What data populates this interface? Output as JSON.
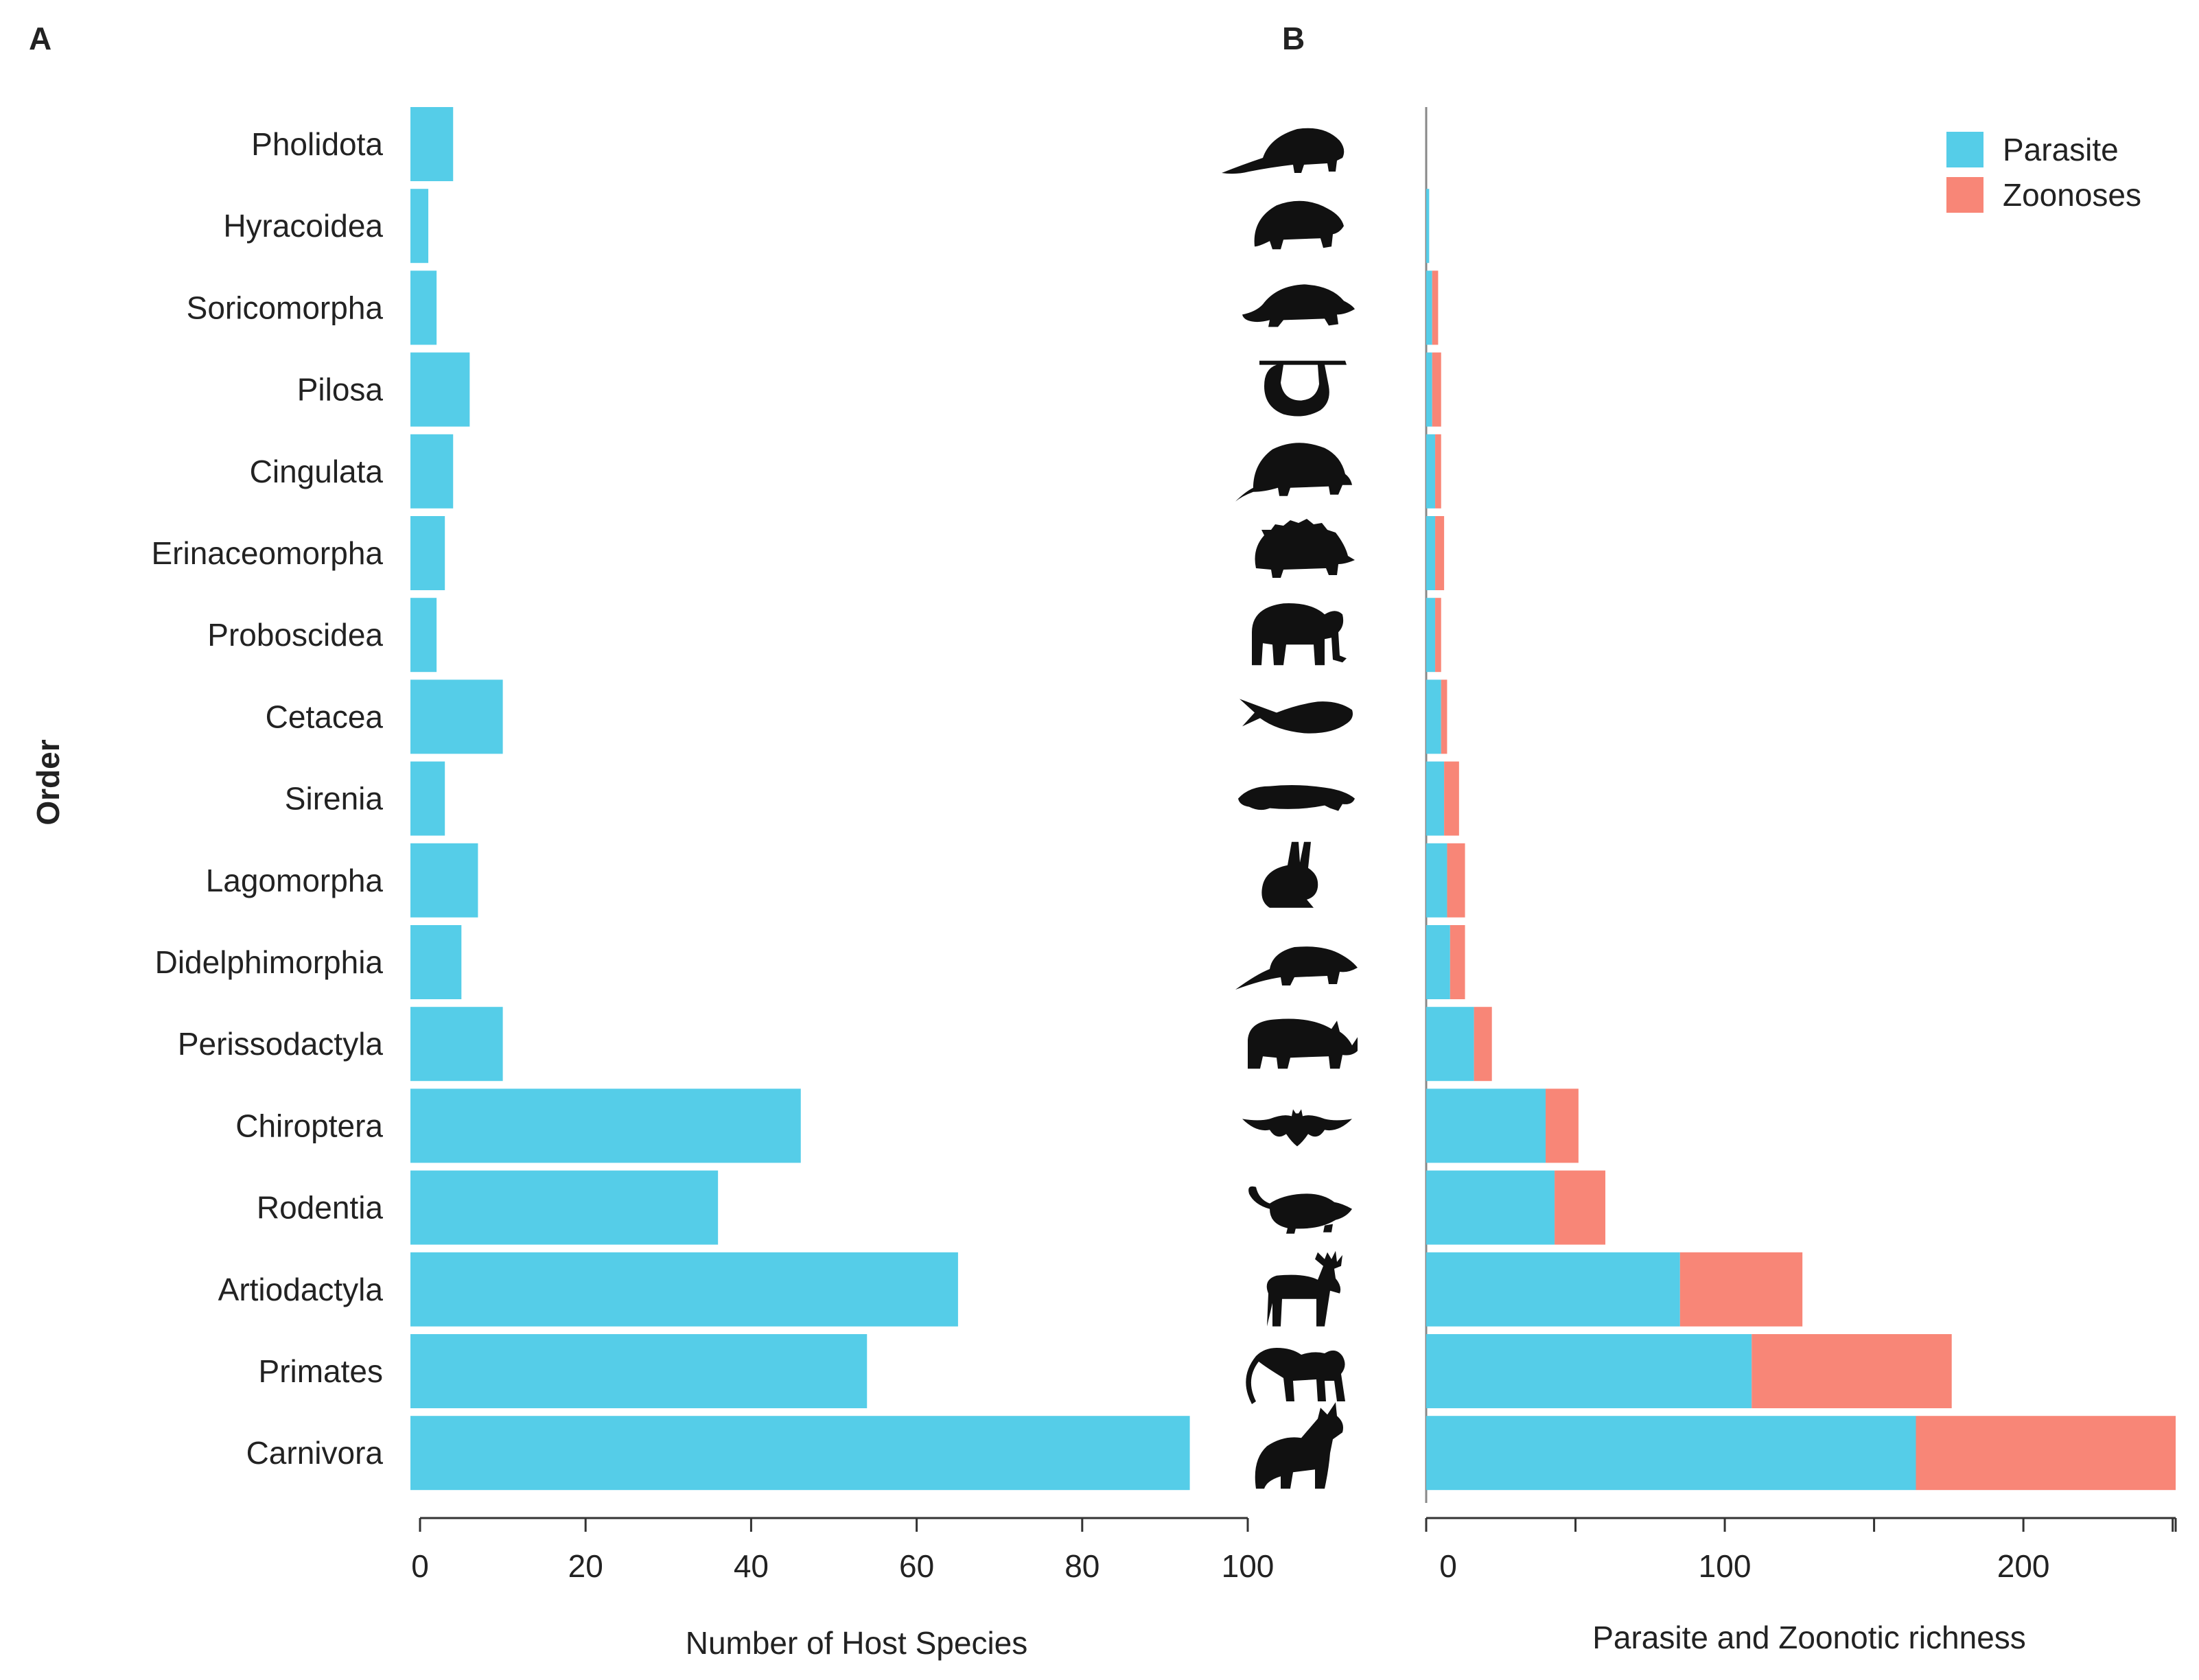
{
  "figure": {
    "panel_a_letter": "A",
    "panel_b_letter": "B",
    "y_axis_title": "Order"
  },
  "chart_data": [
    {
      "type": "bar",
      "orientation": "horizontal",
      "panel": "A",
      "categories": [
        "Pholidota",
        "Hyracoidea",
        "Soricomorpha",
        "Pilosa",
        "Cingulata",
        "Erinaceomorpha",
        "Proboscidea",
        "Cetacea",
        "Sirenia",
        "Lagomorpha",
        "Didelphimorphia",
        "Perissodactyla",
        "Chiroptera",
        "Rodentia",
        "Artiodactyla",
        "Primates",
        "Carnivora"
      ],
      "values": [
        4,
        1,
        2,
        6,
        4,
        3,
        2,
        10,
        3,
        7,
        5,
        10,
        46,
        36,
        65,
        54,
        93
      ],
      "xlabel": "Number of Host Species",
      "ylabel": "Order",
      "xlim": [
        0,
        100
      ],
      "xticks": [
        0,
        20,
        40,
        60,
        80,
        100
      ],
      "color": "#55CDE8"
    },
    {
      "type": "bar",
      "orientation": "horizontal",
      "stacked": true,
      "panel": "B",
      "categories": [
        "Pholidota",
        "Hyracoidea",
        "Soricomorpha",
        "Pilosa",
        "Cingulata",
        "Erinaceomorpha",
        "Proboscidea",
        "Cetacea",
        "Sirenia",
        "Lagomorpha",
        "Didelphimorphia",
        "Perissodactyla",
        "Chiroptera",
        "Rodentia",
        "Artiodactyla",
        "Primates",
        "Carnivora"
      ],
      "series": [
        {
          "name": "Parasite",
          "color": "#55CDE8",
          "values": [
            0,
            1,
            2,
            2,
            3,
            3,
            3,
            5,
            6,
            7,
            8,
            16,
            40,
            43,
            85,
            109,
            164
          ]
        },
        {
          "name": "Zoonoses",
          "color": "#F88677",
          "values": [
            0,
            0,
            2,
            3,
            2,
            3,
            2,
            2,
            5,
            6,
            5,
            6,
            11,
            17,
            41,
            67,
            87
          ]
        }
      ],
      "xlabel": "Parasite and Zoonotic richness",
      "xlim": [
        0,
        251
      ],
      "xticks": [
        0,
        100,
        200
      ],
      "legend_position": "top-right",
      "silhouettes": [
        "pangolin-icon",
        "hyrax-icon",
        "mole-icon",
        "sloth-icon",
        "armadillo-icon",
        "hedgehog-icon",
        "elephant-icon",
        "whale-icon",
        "manatee-icon",
        "rabbit-icon",
        "opossum-icon",
        "rhinoceros-icon",
        "bat-icon",
        "rodent-icon",
        "moose-icon",
        "monkey-icon",
        "wolf-icon"
      ]
    }
  ]
}
